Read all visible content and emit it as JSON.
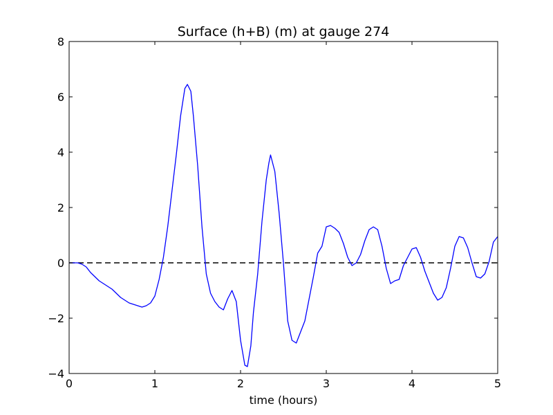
{
  "chart_data": {
    "type": "line",
    "title": "Surface (h+B) (m) at gauge 274",
    "xlabel": "time (hours)",
    "ylabel": "",
    "xlim": [
      0,
      5
    ],
    "ylim": [
      -4,
      8
    ],
    "xticks": [
      0,
      1,
      2,
      3,
      4,
      5
    ],
    "yticks": [
      -4,
      -2,
      0,
      2,
      4,
      6,
      8
    ],
    "xtick_labels": [
      "0",
      "1",
      "2",
      "3",
      "4",
      "5"
    ],
    "ytick_labels": [
      "−4",
      "−2",
      "0",
      "2",
      "4",
      "6",
      "8"
    ],
    "grid": false,
    "reference_line": {
      "y": 0,
      "style": "dashed",
      "color": "#000000"
    },
    "series": [
      {
        "color": "#0000ff",
        "points": [
          [
            0.0,
            0.0
          ],
          [
            0.1,
            0.0
          ],
          [
            0.15,
            -0.05
          ],
          [
            0.2,
            -0.15
          ],
          [
            0.25,
            -0.35
          ],
          [
            0.3,
            -0.5
          ],
          [
            0.35,
            -0.65
          ],
          [
            0.4,
            -0.75
          ],
          [
            0.45,
            -0.85
          ],
          [
            0.5,
            -0.95
          ],
          [
            0.55,
            -1.1
          ],
          [
            0.6,
            -1.25
          ],
          [
            0.65,
            -1.35
          ],
          [
            0.7,
            -1.45
          ],
          [
            0.75,
            -1.5
          ],
          [
            0.8,
            -1.55
          ],
          [
            0.85,
            -1.6
          ],
          [
            0.9,
            -1.55
          ],
          [
            0.95,
            -1.45
          ],
          [
            1.0,
            -1.2
          ],
          [
            1.05,
            -0.6
          ],
          [
            1.1,
            0.2
          ],
          [
            1.15,
            1.3
          ],
          [
            1.2,
            2.6
          ],
          [
            1.25,
            3.9
          ],
          [
            1.3,
            5.3
          ],
          [
            1.35,
            6.3
          ],
          [
            1.38,
            6.45
          ],
          [
            1.42,
            6.2
          ],
          [
            1.45,
            5.3
          ],
          [
            1.5,
            3.5
          ],
          [
            1.55,
            1.3
          ],
          [
            1.6,
            -0.4
          ],
          [
            1.65,
            -1.1
          ],
          [
            1.7,
            -1.4
          ],
          [
            1.75,
            -1.6
          ],
          [
            1.8,
            -1.7
          ],
          [
            1.85,
            -1.3
          ],
          [
            1.9,
            -1.0
          ],
          [
            1.95,
            -1.4
          ],
          [
            2.0,
            -2.8
          ],
          [
            2.05,
            -3.7
          ],
          [
            2.08,
            -3.75
          ],
          [
            2.12,
            -3.0
          ],
          [
            2.15,
            -1.8
          ],
          [
            2.2,
            -0.4
          ],
          [
            2.25,
            1.5
          ],
          [
            2.3,
            3.0
          ],
          [
            2.33,
            3.6
          ],
          [
            2.35,
            3.9
          ],
          [
            2.4,
            3.3
          ],
          [
            2.45,
            1.8
          ],
          [
            2.5,
            0.0
          ],
          [
            2.55,
            -2.1
          ],
          [
            2.6,
            -2.8
          ],
          [
            2.65,
            -2.9
          ],
          [
            2.7,
            -2.5
          ],
          [
            2.75,
            -2.1
          ],
          [
            2.8,
            -1.3
          ],
          [
            2.85,
            -0.5
          ],
          [
            2.9,
            0.35
          ],
          [
            2.95,
            0.6
          ],
          [
            3.0,
            1.3
          ],
          [
            3.05,
            1.35
          ],
          [
            3.1,
            1.25
          ],
          [
            3.15,
            1.1
          ],
          [
            3.2,
            0.7
          ],
          [
            3.25,
            0.2
          ],
          [
            3.3,
            -0.1
          ],
          [
            3.35,
            0.0
          ],
          [
            3.4,
            0.3
          ],
          [
            3.45,
            0.8
          ],
          [
            3.5,
            1.2
          ],
          [
            3.55,
            1.3
          ],
          [
            3.6,
            1.2
          ],
          [
            3.65,
            0.6
          ],
          [
            3.7,
            -0.2
          ],
          [
            3.75,
            -0.75
          ],
          [
            3.8,
            -0.65
          ],
          [
            3.85,
            -0.6
          ],
          [
            3.9,
            -0.1
          ],
          [
            3.95,
            0.2
          ],
          [
            4.0,
            0.5
          ],
          [
            4.05,
            0.55
          ],
          [
            4.1,
            0.2
          ],
          [
            4.15,
            -0.3
          ],
          [
            4.2,
            -0.7
          ],
          [
            4.25,
            -1.1
          ],
          [
            4.3,
            -1.35
          ],
          [
            4.35,
            -1.25
          ],
          [
            4.4,
            -0.9
          ],
          [
            4.45,
            -0.2
          ],
          [
            4.5,
            0.6
          ],
          [
            4.55,
            0.95
          ],
          [
            4.6,
            0.9
          ],
          [
            4.65,
            0.55
          ],
          [
            4.7,
            0.0
          ],
          [
            4.75,
            -0.5
          ],
          [
            4.8,
            -0.55
          ],
          [
            4.85,
            -0.4
          ],
          [
            4.9,
            0.05
          ],
          [
            4.95,
            0.75
          ],
          [
            5.0,
            0.95
          ]
        ]
      }
    ]
  }
}
